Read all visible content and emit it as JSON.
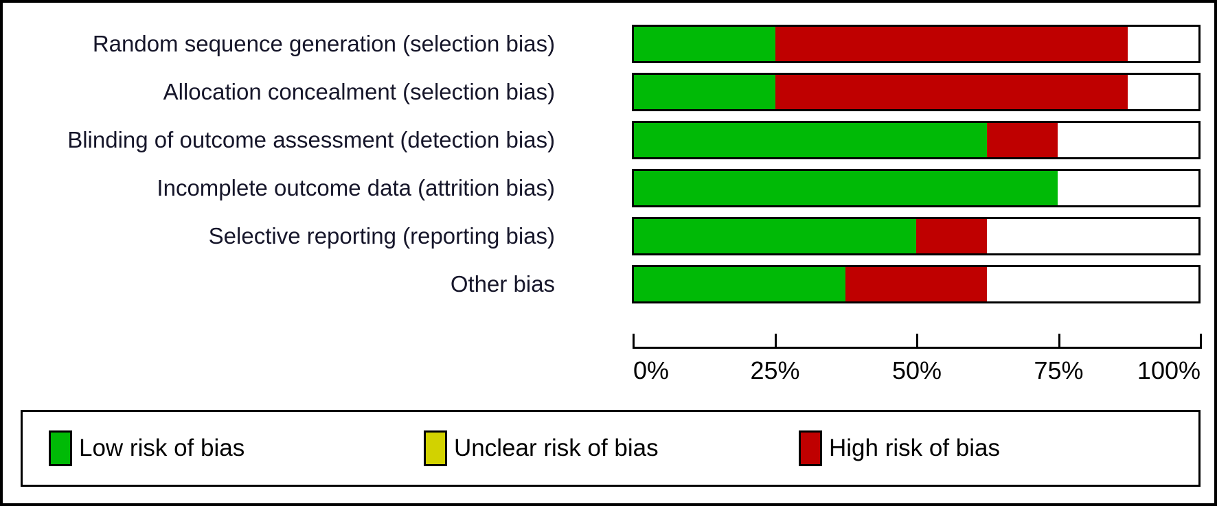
{
  "chart_data": {
    "type": "bar",
    "orientation": "horizontal-stacked",
    "title": "",
    "xlabel": "",
    "ylabel": "",
    "xlim": [
      0,
      100
    ],
    "grid": false,
    "legend_position": "bottom",
    "categories": [
      "Random sequence generation (selection bias)",
      "Allocation concealment (selection bias)",
      "Blinding of outcome assessment (detection bias)",
      "Incomplete outcome data (attrition bias)",
      "Selective reporting (reporting bias)",
      "Other bias"
    ],
    "series": [
      {
        "name": "Low risk of bias",
        "color": "#00ba06",
        "values": [
          25,
          25,
          62.5,
          75,
          50,
          37.5
        ]
      },
      {
        "name": "Unclear risk of bias",
        "color": "#d2d200",
        "values": [
          0,
          0,
          0,
          0,
          0,
          0
        ]
      },
      {
        "name": "High risk of bias",
        "color": "#bf0000",
        "values": [
          62.5,
          62.5,
          12.5,
          0,
          12.5,
          25
        ]
      }
    ],
    "x_ticks": [
      "0%",
      "25%",
      "50%",
      "75%",
      "100%"
    ],
    "x_tick_positions": [
      0,
      25,
      50,
      75,
      100
    ],
    "bar_background": "#ffffff",
    "bar_border_color": "#000000"
  },
  "legend": {
    "items": [
      {
        "label": "Low risk of bias",
        "color": "#00ba06"
      },
      {
        "label": "Unclear risk of bias",
        "color": "#d2d200"
      },
      {
        "label": "High risk of bias",
        "color": "#bf0000"
      }
    ]
  }
}
